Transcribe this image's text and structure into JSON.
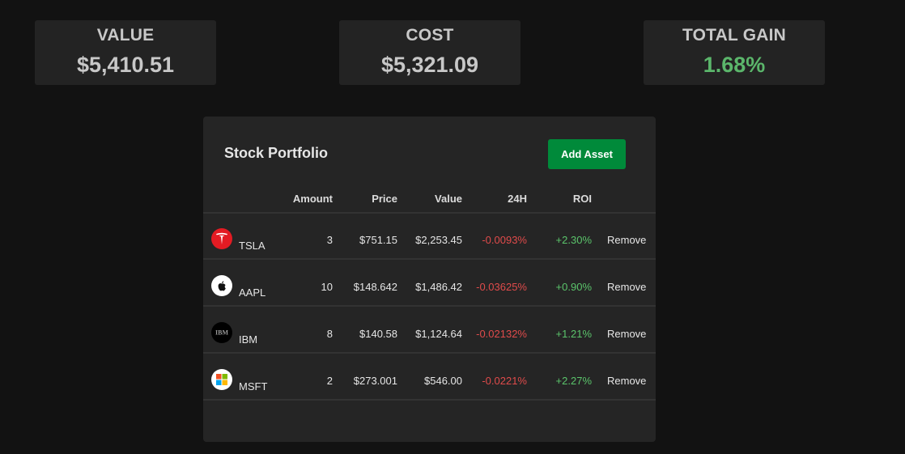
{
  "summary": {
    "value": {
      "label": "VALUE",
      "amount": "$5,410.51"
    },
    "cost": {
      "label": "COST",
      "amount": "$5,321.09"
    },
    "total_gain": {
      "label": "TOTAL GAIN",
      "amount": "1.68%"
    }
  },
  "portfolio": {
    "title": "Stock Portfolio",
    "add_button": "Add Asset",
    "columns": [
      "Amount",
      "Price",
      "Value",
      "24H",
      "ROI"
    ],
    "rows": [
      {
        "ticker": "TSLA",
        "logo_icon": "tesla-logo-icon",
        "amount": "3",
        "price": "$751.15",
        "value": "$2,253.45",
        "change_24h": "-0.0093%",
        "roi": "+2.30%",
        "action": "Remove"
      },
      {
        "ticker": "AAPL",
        "logo_icon": "apple-logo-icon",
        "amount": "10",
        "price": "$148.642",
        "value": "$1,486.42",
        "change_24h": "-0.03625%",
        "roi": "+0.90%",
        "action": "Remove"
      },
      {
        "ticker": "IBM",
        "logo_icon": "ibm-logo-icon",
        "logo_text": "IBM",
        "amount": "8",
        "price": "$140.58",
        "value": "$1,124.64",
        "change_24h": "-0.02132%",
        "roi": "+1.21%",
        "action": "Remove"
      },
      {
        "ticker": "MSFT",
        "logo_icon": "microsoft-logo-icon",
        "amount": "2",
        "price": "$273.001",
        "value": "$546.00",
        "change_24h": "-0.0221%",
        "roi": "+2.27%",
        "action": "Remove"
      }
    ]
  },
  "colors": {
    "background": "#121212",
    "card": "#232323",
    "panel": "#252525",
    "positive": "#5bc46b",
    "negative": "#e04b4b",
    "button": "#008a3a"
  }
}
